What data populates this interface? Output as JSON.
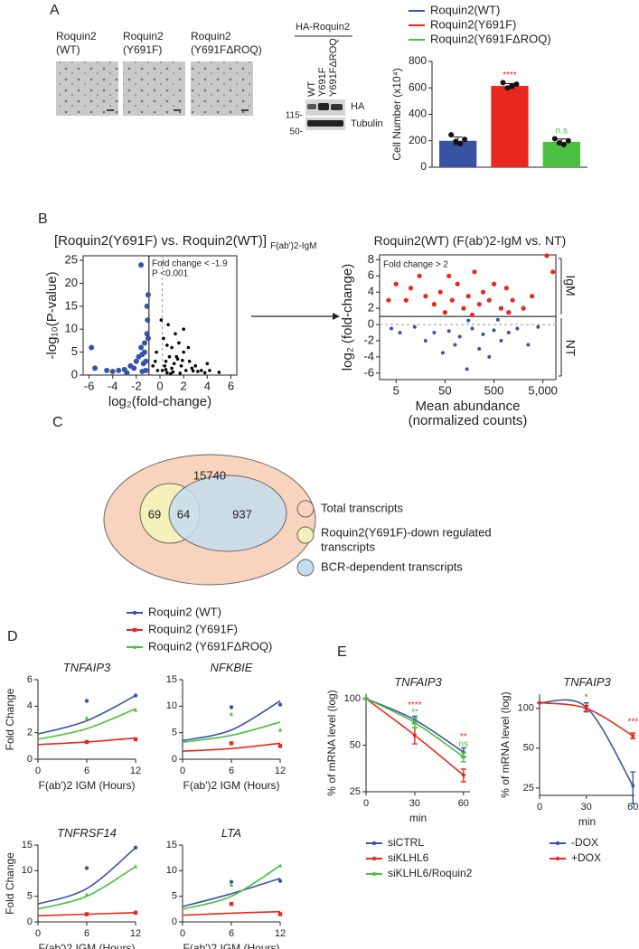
{
  "panel_labels": [
    "A",
    "B",
    "C",
    "D",
    "E"
  ],
  "micrographs": [
    [
      "Roquin2",
      "(WT)"
    ],
    [
      "Roquin2",
      "(Y691F)"
    ],
    [
      "Roquin2",
      "(Y691FΔROQ)"
    ]
  ],
  "blot": {
    "title": "HA-Roquin2",
    "lanes": [
      "WT",
      "Y691F",
      "Y691FΔROQ"
    ],
    "markers": [
      "115-",
      "50-"
    ],
    "bands": [
      "HA",
      "Tubulin"
    ]
  },
  "venn": {
    "total": "15740",
    "down_only": "69",
    "overlap": "64",
    "bcr_only": "937",
    "legend": [
      [
        "Total transcripts"
      ],
      [
        "Roquin2(Y691F)-down regulated",
        "transcripts"
      ],
      [
        "BCR-dependent transcripts"
      ]
    ]
  },
  "chart_data": [
    {
      "type": "bar",
      "ylabel": "Cell Number (x10⁴)",
      "ylim": [
        0,
        800
      ],
      "yticks": [
        0,
        200,
        400,
        600,
        800
      ],
      "series": [
        {
          "name": "Roquin2(WT)",
          "color": "#3953a4",
          "values": [
            200
          ],
          "errors": [
            28
          ],
          "points": [
            245,
            195,
            178,
            210
          ]
        },
        {
          "name": "Roquin2(Y691F)",
          "color": "#e8281e",
          "values": [
            615
          ],
          "errors": [
            18
          ],
          "points": [
            640,
            600,
            612,
            628
          ],
          "label": "****"
        },
        {
          "name": "Roquin2(Y691FΔROQ)",
          "color": "#4bbf3f",
          "values": [
            192
          ],
          "errors": [
            22
          ],
          "points": [
            215,
            185,
            172,
            200
          ],
          "label": "n.s"
        }
      ]
    },
    {
      "type": "scatter",
      "title": "[Roquin2(Y691F) vs. Roquin2(WT)]",
      "title_sub": "F(ab')2-IgM",
      "xlabel": "log₂(fold-change)",
      "ylabel": "-log₁₀(P-value)",
      "frame": true,
      "xlim": [
        -6.5,
        6.5
      ],
      "xticks": [
        -6,
        -4,
        -2,
        0,
        2,
        4,
        6
      ],
      "ylim": [
        0,
        26
      ],
      "yticks": [
        0,
        5,
        10,
        15,
        20,
        25
      ],
      "annotations": [
        "Fold change < -1.9",
        "P <0.001"
      ],
      "vlines": [
        {
          "x": -0.93,
          "dash": false
        },
        {
          "x": 0.2,
          "dash": true
        }
      ],
      "series": [
        {
          "color": "#3953a4",
          "marker_size": 3,
          "x": [
            -5.8,
            -5.5,
            -4.5,
            -4,
            -3.5,
            -3,
            -2.5,
            -2.2,
            -2,
            -1.8,
            -1.6,
            -1.5,
            -1.4,
            -1.3,
            -1.2,
            -1.1,
            -1.1,
            -1.0,
            -1.0,
            -1.6,
            -1.2,
            -1.5,
            -2.8,
            -1.05,
            -1.3
          ],
          "y": [
            6,
            1.5,
            1,
            0.8,
            1,
            1.2,
            2,
            1.5,
            3,
            4,
            6,
            4.5,
            2.5,
            5,
            3,
            15,
            9,
            8,
            17.5,
            24,
            1,
            0.8,
            0.5,
            12,
            7
          ]
        },
        {
          "color": "#000000",
          "marker_size": 1.8,
          "x": [
            0.2,
            0.4,
            0.5,
            0.6,
            0.8,
            1,
            1,
            1.2,
            1.3,
            1.5,
            1.6,
            1.8,
            2,
            2,
            2.2,
            2.5,
            2.7,
            3,
            3.2,
            3.5,
            4,
            4.2,
            5,
            0.1,
            0.3,
            -0.2,
            -0.4,
            -0.6,
            -0.3,
            0.7,
            1.4,
            2.4,
            0.9,
            1.7,
            3.8,
            0.5,
            1.1,
            2.8,
            0.6,
            1.9
          ],
          "y": [
            1,
            2,
            3,
            0.5,
            4,
            1.5,
            6,
            2.5,
            9,
            3.5,
            7,
            2,
            5,
            10,
            1,
            3,
            1.5,
            2,
            0.8,
            1,
            2.5,
            1,
            0.6,
            12,
            8,
            1,
            3,
            2,
            5,
            11,
            4,
            6,
            0.3,
            0.4,
            0.5,
            1.2,
            0.7,
            0.9,
            6.5,
            3.2
          ]
        }
      ]
    },
    {
      "type": "scatter",
      "title": "Roquin2(WT) (F(ab')2-IgM vs. NT)",
      "xlabel": [
        "Mean abundance",
        "(normalized counts)"
      ],
      "ylabel": "log₂ (fold-change)",
      "frame": true,
      "xscale": "log",
      "xlim": [
        2.3,
        9200
      ],
      "xticks": [
        5,
        50,
        500,
        {
          "value": 5000,
          "label": "5,000"
        }
      ],
      "ylim": [
        -6.8,
        8.6
      ],
      "yticks": [
        -6,
        -4,
        -2,
        0,
        2,
        4,
        6,
        8
      ],
      "annotations": [
        "Fold change > 2"
      ],
      "side_labels": [
        "IgM",
        "NT"
      ],
      "hlines": [
        {
          "y": 1,
          "dash": false
        },
        {
          "y": 0,
          "dash": true
        }
      ],
      "series": [
        {
          "color": "#e8281e",
          "marker_size": 2.6,
          "x": [
            5,
            8,
            10,
            15,
            20,
            30,
            40,
            60,
            70,
            90,
            120,
            150,
            200,
            250,
            300,
            400,
            500,
            700,
            900,
            1200,
            2000,
            3000,
            6000,
            8000,
            3.5,
            50,
            180,
            1000
          ],
          "y": [
            5,
            3,
            4.5,
            6,
            3.5,
            2.5,
            4,
            6,
            3,
            5,
            2,
            3.5,
            6.5,
            2.5,
            4,
            3,
            5,
            2,
            4.5,
            3,
            2,
            3.5,
            8.5,
            6.5,
            3,
            1.5,
            1.2,
            1.5
          ]
        },
        {
          "color": "#3953a4",
          "marker_size": 2,
          "x": [
            4,
            6,
            12,
            20,
            30,
            45,
            60,
            80,
            100,
            140,
            180,
            250,
            300,
            400,
            500,
            700,
            1000,
            1500,
            2500,
            4000,
            150,
            600
          ],
          "y": [
            -0.5,
            -1,
            -0.3,
            -2,
            -1,
            -3.5,
            -0.8,
            -2.5,
            -1.5,
            -5.5,
            -0.5,
            -3,
            -1.2,
            -4,
            -0.7,
            -2,
            -1,
            -0.5,
            -2.5,
            -0.3,
            0.5,
            0.6
          ]
        }
      ]
    },
    {
      "type": "line",
      "title": "TNFAIP3",
      "font_style": "italic",
      "xlabel": "F(ab')2 IGM (Hours)",
      "ylabel": "Fold Change",
      "x": [
        0,
        6,
        12
      ],
      "xlim": [
        0,
        12
      ],
      "xticks": [
        0,
        6,
        12
      ],
      "ylim": [
        0,
        6
      ],
      "yticks": [
        0,
        2,
        4,
        6
      ],
      "points_x": [
        6,
        12
      ],
      "series": [
        {
          "name": "Roquin2 (WT)",
          "color": "#3953a4",
          "values": [
            1.9,
            2.9,
            4.8
          ],
          "points": [
            4.4,
            4.8
          ]
        },
        {
          "name": "Roquin2 (Y691F)",
          "color": "#e8281e",
          "values": [
            1.1,
            1.3,
            1.6
          ],
          "points": [
            1.3,
            1.5
          ]
        },
        {
          "name": "Roquin2 (Y691FΔROQ)",
          "color": "#4bbf3f",
          "values": [
            1.5,
            2.3,
            3.8
          ],
          "points": [
            3.1,
            3.7
          ]
        }
      ]
    },
    {
      "type": "line",
      "title": "NFKBIE",
      "font_style": "italic",
      "xlabel": "F(ab')2 IGM (Hours)",
      "x": [
        0,
        6,
        12
      ],
      "xlim": [
        0,
        12
      ],
      "xticks": [
        0,
        6,
        12
      ],
      "ylim": [
        0,
        15
      ],
      "yticks": [
        0,
        5,
        10,
        15
      ],
      "points_x": [
        6,
        12
      ],
      "series": [
        {
          "color": "#3953a4",
          "values": [
            3.5,
            5.5,
            11
          ],
          "points": [
            9.8,
            10.3
          ]
        },
        {
          "color": "#e8281e",
          "values": [
            1.5,
            2,
            3
          ],
          "points": [
            3,
            2.5
          ]
        },
        {
          "color": "#4bbf3f",
          "values": [
            3.2,
            4.5,
            7
          ],
          "points": [
            8.5,
            5.5
          ]
        }
      ]
    },
    {
      "type": "line",
      "title": "TNFRSF14",
      "font_style": "italic",
      "xlabel": "F(ab')2 IGM (Hours)",
      "ylabel": "Fold Change",
      "x": [
        0,
        6,
        12
      ],
      "xlim": [
        0,
        12
      ],
      "xticks": [
        0,
        6,
        12
      ],
      "ylim": [
        0,
        15
      ],
      "yticks": [
        0,
        5,
        10,
        15
      ],
      "points_x": [
        6,
        12
      ],
      "series": [
        {
          "color": "#3953a4",
          "values": [
            3.5,
            6.5,
            14.5
          ],
          "points": [
            10.5,
            14.5
          ]
        },
        {
          "color": "#e8281e",
          "values": [
            1.2,
            1.5,
            1.8
          ],
          "points": [
            1.5,
            1.8
          ]
        },
        {
          "color": "#4bbf3f",
          "values": [
            2.5,
            5,
            10.8
          ],
          "points": [
            5.3,
            10.8
          ]
        }
      ]
    },
    {
      "type": "line",
      "title": "LTA",
      "font_style": "italic",
      "xlabel": "F(ab')2 IGM (Hours)",
      "x": [
        0,
        6,
        12
      ],
      "xlim": [
        0,
        12
      ],
      "xticks": [
        0,
        6,
        12
      ],
      "ylim": [
        0,
        15
      ],
      "yticks": [
        0,
        5,
        10,
        15
      ],
      "points_x": [
        6,
        12
      ],
      "series": [
        {
          "color": "#3953a4",
          "values": [
            3,
            5.5,
            8.5
          ],
          "points": [
            7.8,
            8
          ]
        },
        {
          "color": "#e8281e",
          "values": [
            1.3,
            1.7,
            2
          ],
          "points": [
            3.5,
            1.5
          ]
        },
        {
          "color": "#4bbf3f",
          "values": [
            2.5,
            5,
            11
          ],
          "points": [
            7.2,
            11
          ]
        }
      ]
    },
    {
      "type": "line",
      "title": "TNFAIP3",
      "font_style": "italic",
      "xlabel": "min",
      "ylabel": "% of mRNA level (log)",
      "x": [
        0,
        30,
        60
      ],
      "xlim": [
        0,
        64
      ],
      "xticks": [
        0,
        30,
        60
      ],
      "yscale": "log",
      "ylim": [
        25,
        107
      ],
      "yticks": [
        25,
        50,
        100
      ],
      "series": [
        {
          "name": "siCTRL",
          "color": "#3953a4",
          "values": [
            100,
            73,
            45
          ],
          "errors": [
            0,
            4,
            3
          ]
        },
        {
          "name": "siKLHL6",
          "color": "#e8281e",
          "values": [
            100,
            58,
            32
          ],
          "errors": [
            0,
            7,
            3
          ],
          "sig": [
            null,
            "****",
            "**"
          ]
        },
        {
          "name": "siKLHL6/Roquin2",
          "color": "#4bbf3f",
          "values": [
            100,
            70,
            42
          ],
          "errors": [
            0,
            5,
            3
          ],
          "sig": [
            null,
            "**",
            "ns"
          ]
        }
      ]
    },
    {
      "type": "line",
      "title": "TNFAIP3",
      "font_style": "italic",
      "xlabel": "min",
      "ylabel": "% of mRNA level (log)",
      "x": [
        0,
        30,
        60
      ],
      "xlim": [
        0,
        61
      ],
      "xticks": [
        0,
        30,
        60
      ],
      "yscale": "log",
      "ylim": [
        22,
        128
      ],
      "yticks": [
        25,
        50,
        100
      ],
      "series": [
        {
          "name": "-DOX",
          "color": "#3953a4",
          "values": [
            110,
            102,
            26
          ],
          "errors": [
            0,
            8,
            7
          ]
        },
        {
          "name": "+DOX",
          "color": "#e8281e",
          "values": [
            110,
            100,
            62
          ],
          "errors": [
            0,
            5,
            3
          ],
          "sig": [
            null,
            "*",
            "***"
          ]
        }
      ]
    }
  ]
}
